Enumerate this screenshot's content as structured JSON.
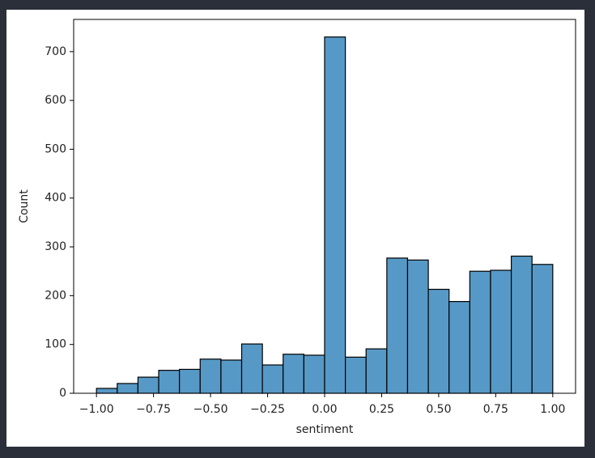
{
  "chart_data": {
    "type": "histogram",
    "x_label": "sentiment",
    "y_label": "Count",
    "bins": [
      -1,
      -0.9091,
      -0.8182,
      -0.7273,
      -0.6364,
      -0.5455,
      -0.4545,
      -0.3636,
      -0.2727,
      -0.1818,
      -0.0909,
      0,
      0.0909,
      0.1818,
      0.2727,
      0.3636,
      0.4545,
      0.5455,
      0.6364,
      0.7273,
      0.8182,
      0.9091,
      1
    ],
    "counts": [
      10,
      20,
      33,
      47,
      49,
      70,
      68,
      101,
      58,
      80,
      78,
      730,
      74,
      91,
      277,
      273,
      213,
      188,
      250,
      252,
      281,
      264
    ],
    "color": "#5799c6",
    "edge_color": "#000000",
    "xlim": [
      -1.1,
      1.1
    ],
    "ylim": [
      0,
      766
    ],
    "xticks": [
      {
        "value": -1,
        "label": "−1.00"
      },
      {
        "value": -0.75,
        "label": "−0.75"
      },
      {
        "value": -0.5,
        "label": "−0.50"
      },
      {
        "value": -0.25,
        "label": "−0.25"
      },
      {
        "value": 0,
        "label": "0.00"
      },
      {
        "value": 0.25,
        "label": "0.25"
      },
      {
        "value": 0.5,
        "label": "0.50"
      },
      {
        "value": 0.75,
        "label": "0.75"
      },
      {
        "value": 1,
        "label": "1.00"
      }
    ],
    "yticks": [
      0,
      100,
      200,
      300,
      400,
      500,
      600,
      700
    ]
  }
}
